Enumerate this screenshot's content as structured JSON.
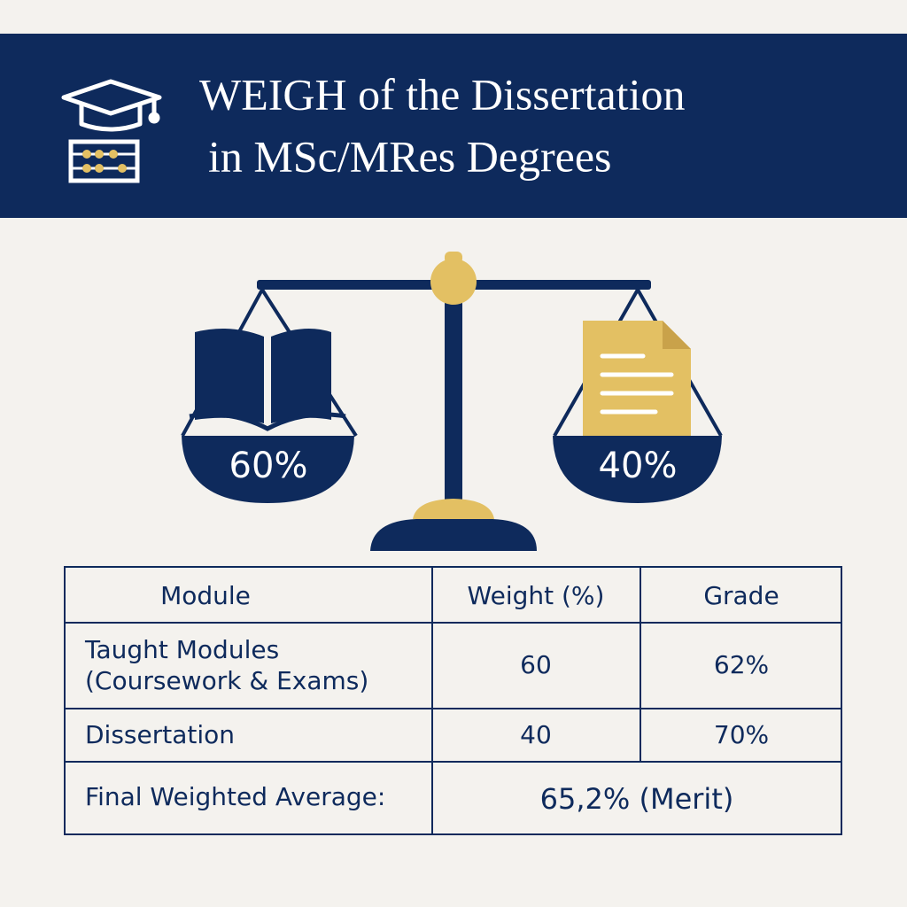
{
  "header": {
    "title_lines": [
      "WEIGH of the Dissertation",
      "in MSc/MRes Degrees"
    ]
  },
  "scale": {
    "left_label": "60%",
    "right_label": "40%"
  },
  "table": {
    "headers": [
      "Module",
      "Weight (%)",
      "Grade"
    ],
    "rows": [
      [
        [
          "Taught Modules",
          "(Coursework & Exams)"
        ],
        "60",
        "62%"
      ],
      [
        "Dissertation",
        "40",
        "70%"
      ]
    ],
    "final": {
      "label": "Final Weighted Average:",
      "value": "65,2% (Merit)"
    }
  }
}
